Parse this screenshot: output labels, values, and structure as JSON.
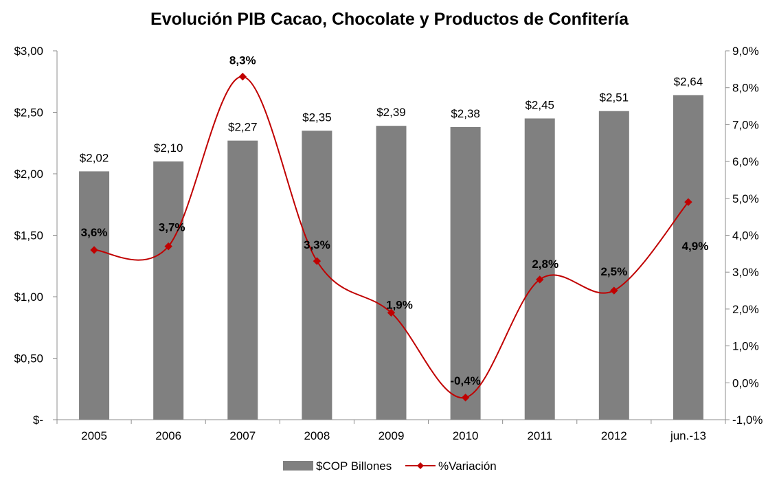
{
  "chart_data": {
    "type": "bar+line",
    "title": "Evolución PIB Cacao, Chocolate y Productos de Confitería",
    "categories": [
      "2005",
      "2006",
      "2007",
      "2008",
      "2009",
      "2010",
      "2011",
      "2012",
      "jun.-13"
    ],
    "series": [
      {
        "name": "$COP Billones",
        "type": "bar",
        "axis": "left",
        "values": [
          2.02,
          2.1,
          2.27,
          2.35,
          2.39,
          2.38,
          2.45,
          2.51,
          2.64
        ],
        "labels": [
          "$2,02",
          "$2,10",
          "$2,27",
          "$2,35",
          "$2,39",
          "$2,38",
          "$2,45",
          "$2,51",
          "$2,64"
        ],
        "color": "#808080"
      },
      {
        "name": "%Variación",
        "type": "line",
        "axis": "right",
        "values": [
          3.6,
          3.7,
          8.3,
          3.3,
          1.9,
          -0.4,
          2.8,
          2.5,
          4.9
        ],
        "labels": [
          "3,6%",
          "3,7%",
          "8,3%",
          "3,3%",
          "1,9%",
          "-0,4%",
          "2,8%",
          "2,5%",
          "4,9%"
        ],
        "color": "#C00000",
        "smooth": true,
        "marker": "diamond"
      }
    ],
    "y_left": {
      "range": [
        0,
        3
      ],
      "ticks": [
        0,
        0.5,
        1,
        1.5,
        2,
        2.5,
        3
      ],
      "tick_labels": [
        "$-",
        "$0,50",
        "$1,00",
        "$1,50",
        "$2,00",
        "$2,50",
        "$3,00"
      ]
    },
    "y_right": {
      "range": [
        -1,
        9
      ],
      "ticks": [
        -1,
        0,
        1,
        2,
        3,
        4,
        5,
        6,
        7,
        8,
        9
      ],
      "tick_labels": [
        "-1,0%",
        "0,0%",
        "1,0%",
        "2,0%",
        "3,0%",
        "4,0%",
        "5,0%",
        "6,0%",
        "7,0%",
        "8,0%",
        "9,0%"
      ]
    },
    "grid": false,
    "legend": "bottom"
  }
}
